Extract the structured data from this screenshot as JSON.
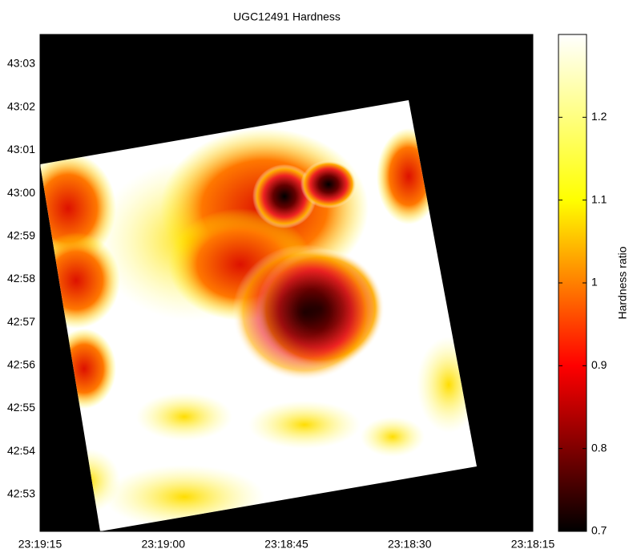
{
  "chart_data": {
    "type": "heatmap",
    "title": "UGC12491 Hardness",
    "xlim": [
      83955,
      83895
    ],
    "xticks": [
      {
        "value": 83955,
        "label": "23:19:15"
      },
      {
        "value": 83940,
        "label": "23:19:00"
      },
      {
        "value": 83925,
        "label": "23:18:45"
      },
      {
        "value": 83910,
        "label": "23:18:30"
      },
      {
        "value": 83895,
        "label": "23:18:15"
      }
    ],
    "ylim": [
      2572.14,
      2583.69
    ],
    "yticks": [
      {
        "value": 2573,
        "label": "42:53"
      },
      {
        "value": 2574,
        "label": "42:54"
      },
      {
        "value": 2575,
        "label": "42:55"
      },
      {
        "value": 2576,
        "label": "42:56"
      },
      {
        "value": 2577,
        "label": "42:57"
      },
      {
        "value": 2578,
        "label": "42:58"
      },
      {
        "value": 2579,
        "label": "42:59"
      },
      {
        "value": 2580,
        "label": "43:00"
      },
      {
        "value": 2581,
        "label": "43:01"
      },
      {
        "value": 2582,
        "label": "43:02"
      },
      {
        "value": 2583,
        "label": "43:03"
      }
    ],
    "colorbar": {
      "label": "Hardness ratio",
      "lim": [
        0.7,
        1.3
      ],
      "ticks": [
        0.7,
        0.8,
        0.9,
        1,
        1.1,
        1.2
      ],
      "colormap": [
        "#000000",
        "#ff0000",
        "#ffff00",
        "#ffffff"
      ]
    }
  }
}
